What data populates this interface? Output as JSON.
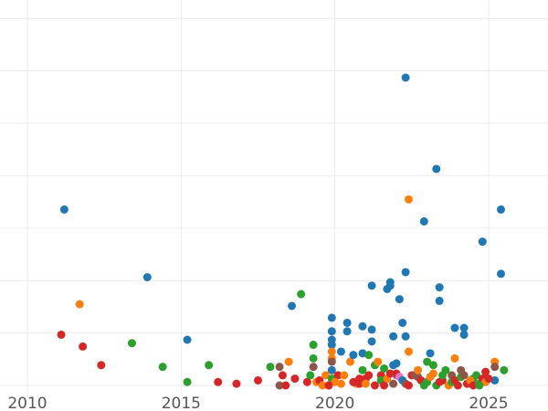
{
  "chart_data": {
    "type": "scatter",
    "title": "",
    "xlabel": "",
    "ylabel": "",
    "xlim": [
      2010,
      2027
    ],
    "ylim": [
      0,
      22
    ],
    "grid": true,
    "x_ticks": [
      2010,
      2015,
      2020,
      2025
    ],
    "x_tick_labels": [
      "2010",
      "2015",
      "2020",
      "2025"
    ],
    "y_gridlines": [
      0,
      3.1,
      6.2,
      9.3,
      12.4,
      15.5,
      18.6,
      21.7
    ],
    "colors": {
      "blue": "#1f77b4",
      "orange": "#ff7f0e",
      "green": "#2ca02c",
      "red": "#d62728",
      "brown": "#8c564b",
      "purple": "#9467bd",
      "pink": "#e377c2"
    },
    "points": [
      {
        "x": 2011.2,
        "y": 10.4,
        "color": "blue"
      },
      {
        "x": 2011.7,
        "y": 4.8,
        "color": "orange"
      },
      {
        "x": 2011.1,
        "y": 3.0,
        "color": "red"
      },
      {
        "x": 2011.8,
        "y": 2.3,
        "color": "red"
      },
      {
        "x": 2012.4,
        "y": 1.2,
        "color": "red"
      },
      {
        "x": 2013.4,
        "y": 2.5,
        "color": "green"
      },
      {
        "x": 2013.9,
        "y": 6.4,
        "color": "blue"
      },
      {
        "x": 2014.4,
        "y": 1.1,
        "color": "green"
      },
      {
        "x": 2015.2,
        "y": 2.7,
        "color": "blue"
      },
      {
        "x": 2015.2,
        "y": 0.2,
        "color": "green"
      },
      {
        "x": 2015.9,
        "y": 1.2,
        "color": "green"
      },
      {
        "x": 2016.2,
        "y": 0.2,
        "color": "red"
      },
      {
        "x": 2016.8,
        "y": 0.1,
        "color": "red"
      },
      {
        "x": 2017.5,
        "y": 0.3,
        "color": "red"
      },
      {
        "x": 2017.9,
        "y": 1.1,
        "color": "green"
      },
      {
        "x": 2018.2,
        "y": 1.1,
        "color": "brown"
      },
      {
        "x": 2018.3,
        "y": 0.6,
        "color": "red"
      },
      {
        "x": 2018.5,
        "y": 1.4,
        "color": "orange"
      },
      {
        "x": 2018.6,
        "y": 4.7,
        "color": "blue"
      },
      {
        "x": 2018.9,
        "y": 5.4,
        "color": "green"
      },
      {
        "x": 2018.7,
        "y": 0.4,
        "color": "red"
      },
      {
        "x": 2018.2,
        "y": 0.0,
        "color": "brown"
      },
      {
        "x": 2018.4,
        "y": 0.0,
        "color": "red"
      },
      {
        "x": 2019.1,
        "y": 0.2,
        "color": "red"
      },
      {
        "x": 2019.2,
        "y": 0.6,
        "color": "green"
      },
      {
        "x": 2019.3,
        "y": 2.4,
        "color": "green"
      },
      {
        "x": 2019.3,
        "y": 1.6,
        "color": "green"
      },
      {
        "x": 2019.3,
        "y": 1.1,
        "color": "brown"
      },
      {
        "x": 2019.4,
        "y": 0.2,
        "color": "orange"
      },
      {
        "x": 2019.5,
        "y": 0.3,
        "color": "red"
      },
      {
        "x": 2019.7,
        "y": 0.6,
        "color": "orange"
      },
      {
        "x": 2019.8,
        "y": 0.0,
        "color": "red"
      },
      {
        "x": 2019.9,
        "y": 4.0,
        "color": "blue"
      },
      {
        "x": 2019.9,
        "y": 3.2,
        "color": "blue"
      },
      {
        "x": 2019.9,
        "y": 2.7,
        "color": "blue"
      },
      {
        "x": 2019.9,
        "y": 2.4,
        "color": "blue"
      },
      {
        "x": 2019.9,
        "y": 2.0,
        "color": "orange"
      },
      {
        "x": 2019.9,
        "y": 1.6,
        "color": "orange"
      },
      {
        "x": 2019.9,
        "y": 1.4,
        "color": "brown"
      },
      {
        "x": 2019.9,
        "y": 0.9,
        "color": "blue"
      },
      {
        "x": 2019.9,
        "y": 0.4,
        "color": "green"
      },
      {
        "x": 2020.1,
        "y": 0.6,
        "color": "red"
      },
      {
        "x": 2020.2,
        "y": 2.0,
        "color": "blue"
      },
      {
        "x": 2020.3,
        "y": 0.6,
        "color": "orange"
      },
      {
        "x": 2020.4,
        "y": 3.7,
        "color": "blue"
      },
      {
        "x": 2020.4,
        "y": 3.2,
        "color": "blue"
      },
      {
        "x": 2020.5,
        "y": 1.4,
        "color": "orange"
      },
      {
        "x": 2020.6,
        "y": 1.8,
        "color": "blue"
      },
      {
        "x": 2020.7,
        "y": 0.1,
        "color": "orange"
      },
      {
        "x": 2020.8,
        "y": 0.4,
        "color": "red"
      },
      {
        "x": 2020.9,
        "y": 3.5,
        "color": "blue"
      },
      {
        "x": 2020.9,
        "y": 1.9,
        "color": "blue"
      },
      {
        "x": 2020.9,
        "y": 0.9,
        "color": "green"
      },
      {
        "x": 2021.0,
        "y": 0.4,
        "color": "red"
      },
      {
        "x": 2021.1,
        "y": 1.8,
        "color": "green"
      },
      {
        "x": 2021.2,
        "y": 5.9,
        "color": "blue"
      },
      {
        "x": 2021.2,
        "y": 3.3,
        "color": "blue"
      },
      {
        "x": 2021.2,
        "y": 2.6,
        "color": "blue"
      },
      {
        "x": 2021.3,
        "y": 1.2,
        "color": "green"
      },
      {
        "x": 2021.4,
        "y": 1.4,
        "color": "orange"
      },
      {
        "x": 2021.5,
        "y": 0.6,
        "color": "red"
      },
      {
        "x": 2021.7,
        "y": 5.7,
        "color": "blue"
      },
      {
        "x": 2021.8,
        "y": 6.1,
        "color": "blue"
      },
      {
        "x": 2021.8,
        "y": 5.9,
        "color": "blue"
      },
      {
        "x": 2021.9,
        "y": 2.9,
        "color": "blue"
      },
      {
        "x": 2021.9,
        "y": 1.2,
        "color": "blue"
      },
      {
        "x": 2022.0,
        "y": 1.3,
        "color": "blue"
      },
      {
        "x": 2022.1,
        "y": 5.1,
        "color": "blue"
      },
      {
        "x": 2022.2,
        "y": 3.7,
        "color": "blue"
      },
      {
        "x": 2022.3,
        "y": 6.7,
        "color": "blue"
      },
      {
        "x": 2022.3,
        "y": 2.9,
        "color": "blue"
      },
      {
        "x": 2022.3,
        "y": 18.2,
        "color": "blue"
      },
      {
        "x": 2022.4,
        "y": 11.0,
        "color": "orange"
      },
      {
        "x": 2022.4,
        "y": 2.0,
        "color": "orange"
      },
      {
        "x": 2022.5,
        "y": 0.6,
        "color": "red"
      },
      {
        "x": 2022.7,
        "y": 0.5,
        "color": "brown"
      },
      {
        "x": 2022.9,
        "y": 9.7,
        "color": "blue"
      },
      {
        "x": 2023.0,
        "y": 1.4,
        "color": "green"
      },
      {
        "x": 2023.1,
        "y": 1.9,
        "color": "blue"
      },
      {
        "x": 2023.2,
        "y": 0.7,
        "color": "orange"
      },
      {
        "x": 2023.3,
        "y": 12.8,
        "color": "blue"
      },
      {
        "x": 2023.4,
        "y": 5.8,
        "color": "blue"
      },
      {
        "x": 2023.4,
        "y": 5.0,
        "color": "blue"
      },
      {
        "x": 2023.5,
        "y": 0.3,
        "color": "red"
      },
      {
        "x": 2023.8,
        "y": 0.6,
        "color": "brown"
      },
      {
        "x": 2023.9,
        "y": 3.4,
        "color": "blue"
      },
      {
        "x": 2023.9,
        "y": 1.6,
        "color": "orange"
      },
      {
        "x": 2024.1,
        "y": 0.9,
        "color": "brown"
      },
      {
        "x": 2024.2,
        "y": 3.4,
        "color": "blue"
      },
      {
        "x": 2024.2,
        "y": 3.0,
        "color": "blue"
      },
      {
        "x": 2024.5,
        "y": 0.4,
        "color": "green"
      },
      {
        "x": 2024.8,
        "y": 8.5,
        "color": "blue"
      },
      {
        "x": 2024.9,
        "y": 0.8,
        "color": "red"
      },
      {
        "x": 2025.2,
        "y": 1.4,
        "color": "orange"
      },
      {
        "x": 2025.2,
        "y": 1.1,
        "color": "brown"
      },
      {
        "x": 2025.4,
        "y": 10.4,
        "color": "blue"
      },
      {
        "x": 2025.4,
        "y": 6.6,
        "color": "blue"
      },
      {
        "x": 2025.5,
        "y": 0.9,
        "color": "green"
      },
      {
        "x": 2025.2,
        "y": 0.3,
        "color": "blue"
      },
      {
        "x": 2020.0,
        "y": 0.2,
        "color": "orange"
      },
      {
        "x": 2020.6,
        "y": 0.2,
        "color": "red"
      },
      {
        "x": 2020.8,
        "y": 0.1,
        "color": "red"
      },
      {
        "x": 2021.0,
        "y": 0.1,
        "color": "orange"
      },
      {
        "x": 2021.1,
        "y": 0.6,
        "color": "red"
      },
      {
        "x": 2021.3,
        "y": 0.0,
        "color": "red"
      },
      {
        "x": 2021.5,
        "y": 0.3,
        "color": "green"
      },
      {
        "x": 2021.6,
        "y": 0.0,
        "color": "red"
      },
      {
        "x": 2021.6,
        "y": 1.0,
        "color": "green"
      },
      {
        "x": 2021.7,
        "y": 0.4,
        "color": "orange"
      },
      {
        "x": 2021.8,
        "y": 0.7,
        "color": "red"
      },
      {
        "x": 2021.9,
        "y": 0.1,
        "color": "brown"
      },
      {
        "x": 2022.0,
        "y": 0.6,
        "color": "purple"
      },
      {
        "x": 2022.0,
        "y": 0.7,
        "color": "red"
      },
      {
        "x": 2022.1,
        "y": 0.5,
        "color": "pink"
      },
      {
        "x": 2022.2,
        "y": 0.3,
        "color": "blue"
      },
      {
        "x": 2022.3,
        "y": 0.1,
        "color": "brown"
      },
      {
        "x": 2022.4,
        "y": 0.0,
        "color": "red"
      },
      {
        "x": 2022.6,
        "y": 0.6,
        "color": "brown"
      },
      {
        "x": 2022.7,
        "y": 0.9,
        "color": "orange"
      },
      {
        "x": 2022.8,
        "y": 0.3,
        "color": "red"
      },
      {
        "x": 2022.9,
        "y": 0.0,
        "color": "green"
      },
      {
        "x": 2023.0,
        "y": 0.2,
        "color": "green"
      },
      {
        "x": 2023.1,
        "y": 0.5,
        "color": "orange"
      },
      {
        "x": 2023.2,
        "y": 1.2,
        "color": "green"
      },
      {
        "x": 2023.3,
        "y": 0.0,
        "color": "green"
      },
      {
        "x": 2023.4,
        "y": 0.2,
        "color": "red"
      },
      {
        "x": 2023.5,
        "y": 0.6,
        "color": "green"
      },
      {
        "x": 2023.6,
        "y": 0.9,
        "color": "green"
      },
      {
        "x": 2023.7,
        "y": 0.0,
        "color": "orange"
      },
      {
        "x": 2023.8,
        "y": 0.2,
        "color": "green"
      },
      {
        "x": 2023.9,
        "y": 0.3,
        "color": "red"
      },
      {
        "x": 2024.0,
        "y": 0.0,
        "color": "red"
      },
      {
        "x": 2024.1,
        "y": 0.5,
        "color": "green"
      },
      {
        "x": 2024.2,
        "y": 0.6,
        "color": "brown"
      },
      {
        "x": 2024.3,
        "y": 0.1,
        "color": "red"
      },
      {
        "x": 2024.4,
        "y": 0.3,
        "color": "orange"
      },
      {
        "x": 2024.5,
        "y": 0.0,
        "color": "red"
      },
      {
        "x": 2024.6,
        "y": 0.6,
        "color": "green"
      },
      {
        "x": 2024.7,
        "y": 0.1,
        "color": "green"
      },
      {
        "x": 2024.8,
        "y": 0.4,
        "color": "red"
      },
      {
        "x": 2024.9,
        "y": 0.2,
        "color": "orange"
      },
      {
        "x": 2025.0,
        "y": 0.4,
        "color": "red"
      },
      {
        "x": 2024.7,
        "y": 0.0,
        "color": "green"
      },
      {
        "x": 2019.6,
        "y": 0.0,
        "color": "orange"
      },
      {
        "x": 2019.8,
        "y": 0.0,
        "color": "red"
      },
      {
        "x": 2020.2,
        "y": 0.1,
        "color": "orange"
      }
    ]
  }
}
